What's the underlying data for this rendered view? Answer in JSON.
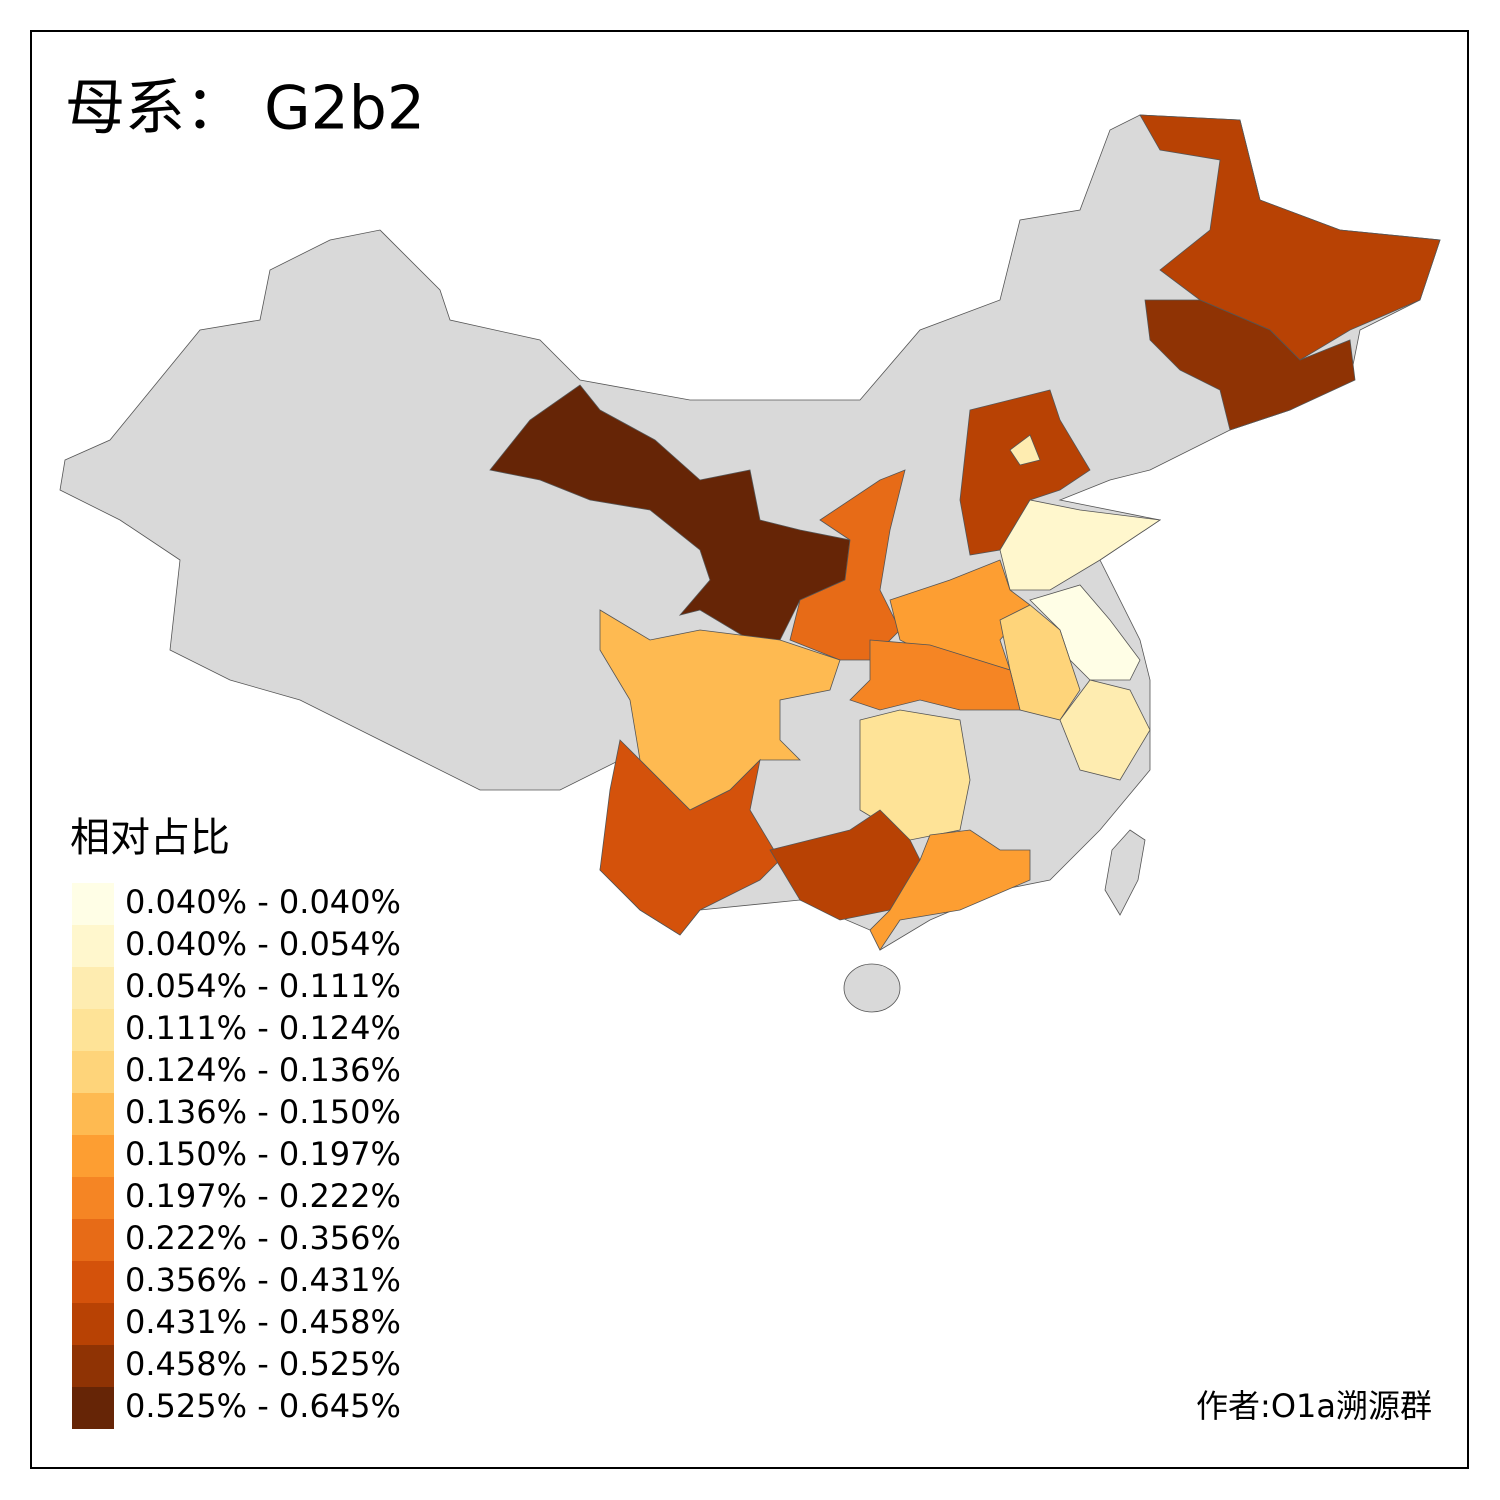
{
  "title": "母系： G2b2",
  "legend": {
    "title": "相对占比",
    "items": [
      {
        "label": "0.040% - 0.040%",
        "color": "#fffee6"
      },
      {
        "label": "0.040% - 0.054%",
        "color": "#fff7cd"
      },
      {
        "label": "0.054% - 0.111%",
        "color": "#feecb0"
      },
      {
        "label": "0.111% - 0.124%",
        "color": "#fee397"
      },
      {
        "label": "0.124% - 0.136%",
        "color": "#fed47a"
      },
      {
        "label": "0.136% - 0.150%",
        "color": "#feba51"
      },
      {
        "label": "0.150% - 0.197%",
        "color": "#fd9e32"
      },
      {
        "label": "0.197% - 0.222%",
        "color": "#f58524"
      },
      {
        "label": "0.222% - 0.356%",
        "color": "#e76b17"
      },
      {
        "label": "0.356% - 0.431%",
        "color": "#d4520b"
      },
      {
        "label": "0.431% - 0.458%",
        "color": "#b84204"
      },
      {
        "label": "0.458% - 0.525%",
        "color": "#8f3304"
      },
      {
        "label": "0.525% - 0.645%",
        "color": "#662506"
      }
    ]
  },
  "credit": "作者:O1a溯源群"
}
